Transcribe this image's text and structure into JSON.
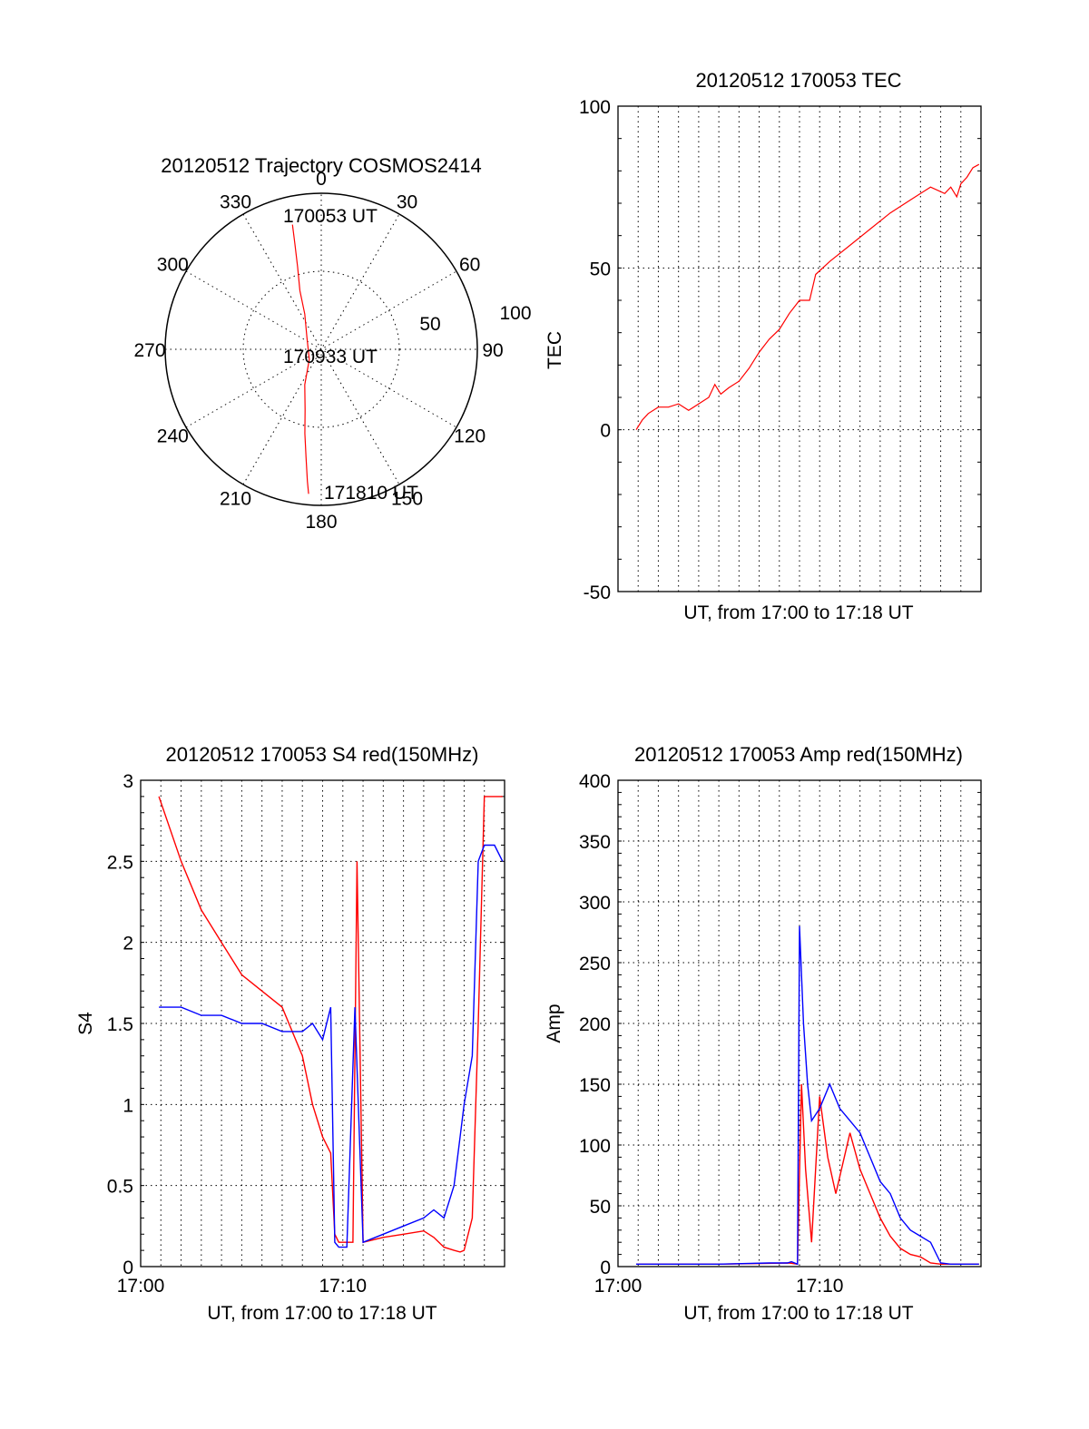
{
  "colors": {
    "red": "#ff0000",
    "blue": "#0000ff",
    "axis": "#000000",
    "background": "#ffffff"
  },
  "chart_data": [
    {
      "id": "polar",
      "type": "scatter",
      "title": "20120512 Trajectory COSMOS2414",
      "coordinate_system": "polar",
      "azimuth_labels": [
        "0",
        "30",
        "60",
        "90",
        "120",
        "150",
        "180",
        "210",
        "240",
        "270",
        "300",
        "330"
      ],
      "radius_labels": [
        "50",
        "100"
      ],
      "radius_range": [
        0,
        100
      ],
      "grid": true,
      "annotations": [
        "170053 UT",
        "170933 UT",
        "171810 UT"
      ],
      "series": [
        {
          "color": "#ff0000",
          "points": [
            {
              "az": 347,
              "r": 82
            },
            {
              "az": 346,
              "r": 70
            },
            {
              "az": 344,
              "r": 55
            },
            {
              "az": 340,
              "r": 40
            },
            {
              "az": 335,
              "r": 25
            },
            {
              "az": 310,
              "r": 12
            },
            {
              "az": 230,
              "r": 10
            },
            {
              "az": 205,
              "r": 25
            },
            {
              "az": 195,
              "r": 40
            },
            {
              "az": 191,
              "r": 55
            },
            {
              "az": 188,
              "r": 70
            },
            {
              "az": 186,
              "r": 85
            },
            {
              "az": 185,
              "r": 93
            }
          ]
        }
      ]
    },
    {
      "id": "tec",
      "type": "line",
      "title": "20120512 170053 TEC",
      "xlabel": "UT, from 17:00 to 17:18 UT",
      "ylabel": "TEC",
      "xlim": [
        0,
        18
      ],
      "ylim": [
        -50,
        100
      ],
      "yticks": [
        "100",
        "50",
        "0",
        "-50"
      ],
      "grid": true,
      "series": [
        {
          "color": "#ff0000",
          "x": [
            0.9,
            1.2,
            1.5,
            2.0,
            2.5,
            3.0,
            3.5,
            4.0,
            4.5,
            4.8,
            5.1,
            5.5,
            6.0,
            6.5,
            7.0,
            7.5,
            8.0,
            8.5,
            9.0,
            9.5,
            9.8,
            10.5,
            11.5,
            12.5,
            13.5,
            14.5,
            15.5,
            16.2,
            16.5,
            16.8,
            17.0,
            17.3,
            17.6,
            17.9
          ],
          "y": [
            0,
            3,
            5,
            7,
            7,
            8,
            6,
            8,
            10,
            14,
            11,
            13,
            15,
            19,
            24,
            28,
            31,
            36,
            40,
            40,
            48,
            52,
            57,
            62,
            67,
            71,
            75,
            73,
            75,
            72,
            76,
            78,
            81,
            82
          ]
        }
      ]
    },
    {
      "id": "s4",
      "type": "line",
      "title": "20120512 170053 S4 red(150MHz)",
      "xlabel": "UT, from 17:00 to 17:18 UT",
      "ylabel": "S4",
      "xlim": [
        0,
        18
      ],
      "ylim": [
        0,
        3
      ],
      "xticks": [
        "17:00",
        "17:10"
      ],
      "yticks": [
        "0",
        "0.5",
        "1",
        "1.5",
        "2",
        "2.5",
        "3"
      ],
      "grid": true,
      "series": [
        {
          "color": "#ff0000",
          "x": [
            0.9,
            2.0,
            3.0,
            4.0,
            5.0,
            6.0,
            7.0,
            8.0,
            8.5,
            9.0,
            9.4,
            9.6,
            9.8,
            10.2,
            10.5,
            10.7,
            11.0,
            12.0,
            13.0,
            14.0,
            14.5,
            15.0,
            15.5,
            15.8,
            16.0,
            16.4,
            16.7,
            17.0,
            17.5,
            17.9
          ],
          "y": [
            2.9,
            2.5,
            2.2,
            2.0,
            1.8,
            1.7,
            1.6,
            1.3,
            1.0,
            0.8,
            0.7,
            0.2,
            0.15,
            0.15,
            0.15,
            2.5,
            0.15,
            0.18,
            0.2,
            0.22,
            0.18,
            0.12,
            0.1,
            0.09,
            0.1,
            0.3,
            1.5,
            2.9,
            2.9,
            2.9
          ]
        },
        {
          "color": "#0000ff",
          "x": [
            0.9,
            2.0,
            3.0,
            4.0,
            5.0,
            6.0,
            7.0,
            8.0,
            8.5,
            9.0,
            9.4,
            9.6,
            9.8,
            10.2,
            10.6,
            11.0,
            12.0,
            13.0,
            14.0,
            14.5,
            15.0,
            15.5,
            15.8,
            16.0,
            16.4,
            16.7,
            17.0,
            17.5,
            17.9
          ],
          "y": [
            1.6,
            1.6,
            1.55,
            1.55,
            1.5,
            1.5,
            1.45,
            1.45,
            1.5,
            1.4,
            1.6,
            0.15,
            0.12,
            0.12,
            1.6,
            0.15,
            0.2,
            0.25,
            0.3,
            0.35,
            0.3,
            0.5,
            0.8,
            1.0,
            1.3,
            2.5,
            2.6,
            2.6,
            2.5
          ]
        }
      ]
    },
    {
      "id": "amp",
      "type": "line",
      "title": "20120512 170053 Amp red(150MHz)",
      "xlabel": "UT, from 17:00 to 17:18 UT",
      "ylabel": "Amp",
      "xlim": [
        0,
        18
      ],
      "ylim": [
        0,
        400
      ],
      "xticks": [
        "17:00",
        "17:10"
      ],
      "yticks": [
        "0",
        "50",
        "100",
        "150",
        "200",
        "250",
        "300",
        "350",
        "400"
      ],
      "grid": true,
      "series": [
        {
          "color": "#ff0000",
          "x": [
            0.9,
            5.0,
            8.5,
            8.9,
            9.1,
            9.3,
            9.6,
            10.0,
            10.4,
            10.8,
            11.5,
            12.0,
            12.5,
            13.0,
            13.5,
            14.0,
            14.5,
            15.0,
            15.5,
            16.0,
            17.9
          ],
          "y": [
            2,
            2,
            3,
            2,
            150,
            80,
            20,
            140,
            90,
            60,
            110,
            80,
            60,
            40,
            25,
            15,
            10,
            8,
            3,
            2,
            2
          ]
        },
        {
          "color": "#0000ff",
          "x": [
            0.9,
            5.0,
            7.5,
            8.4,
            8.6,
            8.9,
            9.0,
            9.2,
            9.4,
            9.6,
            10.0,
            10.5,
            11.0,
            11.5,
            12.0,
            12.5,
            13.0,
            13.5,
            14.0,
            14.5,
            15.0,
            15.5,
            16.0,
            16.5,
            17.9
          ],
          "y": [
            2,
            2,
            3,
            3,
            4,
            2,
            280,
            200,
            150,
            120,
            130,
            150,
            130,
            120,
            110,
            90,
            70,
            60,
            40,
            30,
            25,
            20,
            3,
            2,
            2
          ]
        }
      ]
    }
  ]
}
